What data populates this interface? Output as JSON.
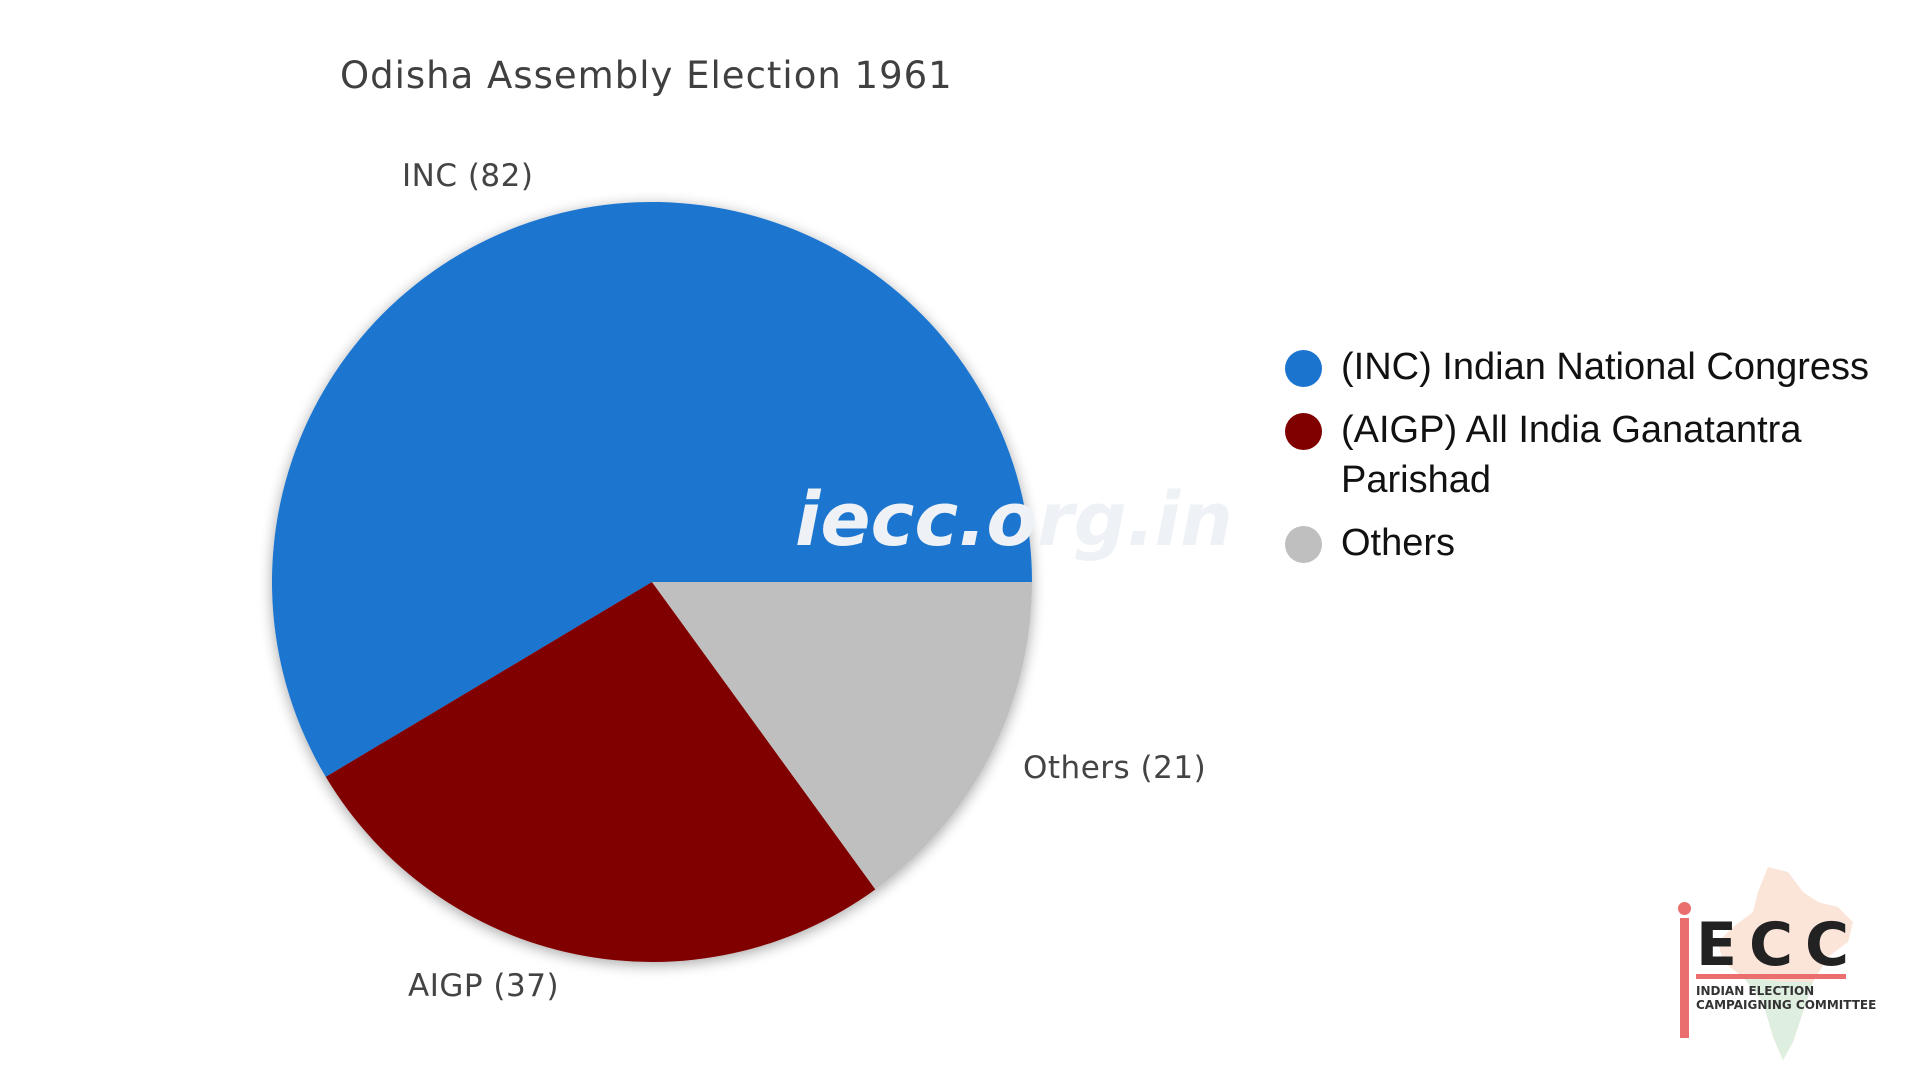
{
  "chart_data": {
    "type": "pie",
    "title": "Odisha Assembly Election 1961",
    "slices": [
      {
        "name": "INC",
        "value": 82,
        "label": "INC (82)",
        "color": "#1b75cf"
      },
      {
        "name": "AIGP",
        "value": 37,
        "label": "AIGP (37)",
        "color": "#800000"
      },
      {
        "name": "Others",
        "value": 21,
        "label": "Others (21)",
        "color": "#bfbfbf"
      }
    ],
    "legend": {
      "placement": "right",
      "entries": [
        {
          "label": "(INC) Indian National Congress",
          "color": "#1b75cf"
        },
        {
          "label": "(AIGP) All India Ganatantra Parishad",
          "color": "#800000"
        },
        {
          "label": "Others",
          "color": "#bfbfbf"
        }
      ]
    },
    "watermark": "iecc.org.in"
  },
  "logo": {
    "word": "ECC",
    "subtitle": "INDIAN ELECTION CAMPAIGNING COMMITTEE",
    "accent_color": "#ea6e6e"
  }
}
